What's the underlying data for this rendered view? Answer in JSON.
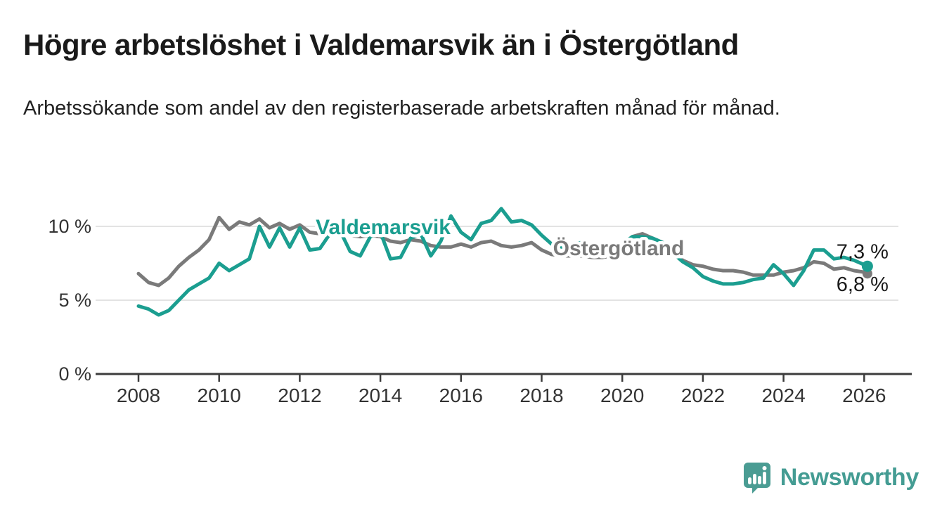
{
  "header": {
    "title": "Högre arbetslöshet i Valdemarsvik än i Östergötland",
    "subtitle": "Arbetssökande som andel av den registerbaserade arbetskraften månad för månad."
  },
  "chart_data": {
    "type": "line",
    "title": "",
    "xlabel": "",
    "ylabel": "",
    "x_unit": "decimal_year",
    "grid": "horizontal",
    "legend": "inline-labels",
    "x": [
      2008,
      2008.25,
      2008.5,
      2008.75,
      2009,
      2009.25,
      2009.5,
      2009.75,
      2010,
      2010.25,
      2010.5,
      2010.75,
      2011,
      2011.25,
      2011.5,
      2011.75,
      2012,
      2012.25,
      2012.5,
      2012.75,
      2013,
      2013.25,
      2013.5,
      2013.75,
      2014,
      2014.25,
      2014.5,
      2014.75,
      2015,
      2015.25,
      2015.5,
      2015.75,
      2016,
      2016.25,
      2016.5,
      2016.75,
      2017,
      2017.25,
      2017.5,
      2017.75,
      2018,
      2018.25,
      2018.5,
      2018.75,
      2019,
      2019.25,
      2019.5,
      2019.75,
      2020,
      2020.25,
      2020.5,
      2020.75,
      2021,
      2021.25,
      2021.5,
      2021.75,
      2022,
      2022.25,
      2022.5,
      2022.75,
      2023,
      2023.25,
      2023.5,
      2023.75,
      2024,
      2024.25,
      2024.5,
      2024.75,
      2025,
      2025.25,
      2025.5,
      2025.75,
      2026,
      2026.08
    ],
    "series": [
      {
        "name": "Valdemarsvik",
        "color": "#1b9e90",
        "end_label": "7,3 %",
        "end_value": 7.3,
        "values": [
          4.6,
          4.4,
          4.0,
          4.3,
          5.0,
          5.7,
          6.1,
          6.5,
          7.5,
          7.0,
          7.4,
          7.8,
          10.0,
          8.6,
          9.9,
          8.6,
          9.9,
          8.4,
          8.5,
          9.5,
          9.7,
          8.3,
          8.0,
          9.3,
          9.6,
          7.8,
          7.9,
          9.2,
          9.5,
          8.0,
          9.0,
          10.7,
          9.6,
          9.1,
          10.2,
          10.4,
          11.2,
          10.3,
          10.4,
          10.1,
          9.4,
          8.8,
          8.6,
          8.8,
          8.9,
          8.5,
          8.4,
          8.6,
          8.8,
          9.3,
          9.3,
          9.2,
          8.9,
          8.2,
          7.6,
          7.2,
          6.6,
          6.3,
          6.1,
          6.1,
          6.2,
          6.4,
          6.5,
          7.4,
          6.8,
          6.0,
          7.0,
          8.4,
          8.4,
          7.8,
          7.9,
          7.7,
          7.4,
          7.3
        ]
      },
      {
        "name": "Östergötland",
        "color": "#7a7a7a",
        "end_label": "6,8 %",
        "end_value": 6.8,
        "values": [
          6.8,
          6.2,
          6.0,
          6.5,
          7.3,
          7.9,
          8.4,
          9.1,
          10.6,
          9.8,
          10.3,
          10.1,
          10.5,
          9.9,
          10.2,
          9.8,
          10.1,
          9.6,
          9.5,
          9.7,
          9.7,
          9.4,
          9.3,
          9.4,
          9.3,
          9.0,
          8.9,
          9.1,
          9.0,
          8.7,
          8.6,
          8.6,
          8.8,
          8.6,
          8.9,
          9.0,
          8.7,
          8.6,
          8.7,
          8.9,
          8.4,
          8.1,
          8.0,
          8.0,
          8.0,
          7.9,
          7.9,
          8.0,
          8.3,
          9.3,
          9.5,
          9.2,
          8.9,
          8.4,
          7.7,
          7.4,
          7.3,
          7.1,
          7.0,
          7.0,
          6.9,
          6.7,
          6.7,
          6.7,
          6.9,
          7.0,
          7.2,
          7.6,
          7.5,
          7.1,
          7.2,
          7.0,
          6.9,
          6.8
        ]
      }
    ],
    "y_axis": {
      "range": [
        0,
        11.6
      ],
      "ticks": [
        {
          "value": 10,
          "label": "10 %"
        },
        {
          "value": 5,
          "label": "5 %"
        },
        {
          "value": 0,
          "label": "0 %"
        }
      ]
    },
    "x_axis": {
      "range": [
        2006.9,
        2027.2
      ],
      "ticks": [
        {
          "value": 2008,
          "label": "2008"
        },
        {
          "value": 2010,
          "label": "2010"
        },
        {
          "value": 2012,
          "label": "2012"
        },
        {
          "value": 2014,
          "label": "2014"
        },
        {
          "value": 2016,
          "label": "2016"
        },
        {
          "value": 2018,
          "label": "2018"
        },
        {
          "value": 2020,
          "label": "2020"
        },
        {
          "value": 2022,
          "label": "2022"
        },
        {
          "value": 2024,
          "label": "2024"
        },
        {
          "value": 2026,
          "label": "2026"
        }
      ]
    }
  },
  "footer": {
    "brand": "Newsworthy"
  }
}
